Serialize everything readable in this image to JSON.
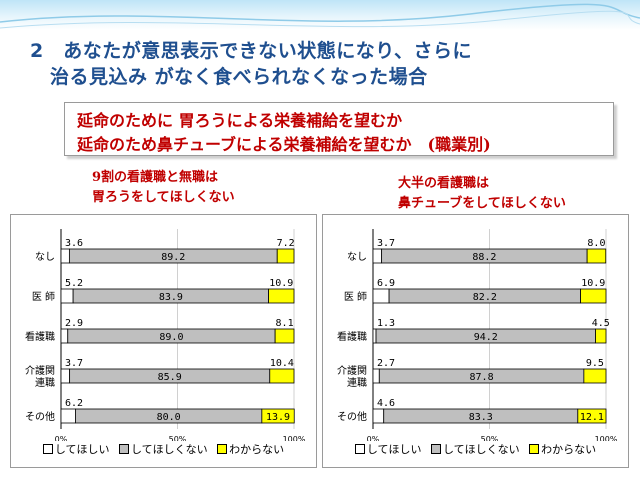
{
  "heading": {
    "line1": "2　あなたが意思表示できない状態になり、さらに",
    "line2": "治る見込み がなく食べられなくなった場合"
  },
  "redbox": {
    "line1": "延命のために 胃ろうによる栄養補給を望むか",
    "line2": "延命のため鼻チューブによる栄養補給を望むか　(職業別)"
  },
  "subtitles": {
    "left": [
      "9割の看護職と無職は",
      "胃ろうをしてほしくない"
    ],
    "right": [
      "大半の看護職は",
      "鼻チューブをしてほしくない"
    ]
  },
  "colors": {
    "want": "#ffffff",
    "dont": "#bfbfbf",
    "unknown": "#ffff00",
    "heading": "#1f4f8f",
    "accent": "#c00000"
  },
  "legend": [
    "してほしい",
    "してほしくない",
    "わからない"
  ],
  "chart_data": [
    {
      "type": "bar",
      "orientation": "horizontal",
      "stacked": true,
      "categories": [
        "なし",
        "医 師",
        "看護職",
        "介護関\n連職",
        "その他"
      ],
      "series": [
        {
          "name": "してほしい",
          "values": [
            3.6,
            5.2,
            2.9,
            3.7,
            6.2
          ],
          "labels": [
            "3.6",
            "5.2",
            "2.9",
            "3.7",
            "6.2"
          ]
        },
        {
          "name": "してほしくない",
          "values": [
            89.2,
            83.9,
            89.0,
            85.9,
            80.0
          ],
          "labels": [
            "89.2",
            "83.9",
            "89.0",
            "85.9",
            "80.0"
          ]
        },
        {
          "name": "わからない",
          "values": [
            7.2,
            10.9,
            8.1,
            10.4,
            13.9
          ],
          "labels": [
            "7.2",
            "10.9",
            "8.1",
            "10.4",
            "13.9"
          ]
        }
      ],
      "xticks": [
        "0%",
        "50%",
        "100%"
      ],
      "xlim": [
        0,
        100
      ],
      "legend_position": "bottom"
    },
    {
      "type": "bar",
      "orientation": "horizontal",
      "stacked": true,
      "categories": [
        "なし",
        "医 師",
        "看護職",
        "介護関\n連職",
        "その他"
      ],
      "series": [
        {
          "name": "してほしい",
          "values": [
            3.7,
            6.9,
            1.3,
            2.7,
            4.6
          ],
          "labels": [
            "3.7",
            "6.9",
            "1.3",
            "2.7",
            "4.6"
          ]
        },
        {
          "name": "してほしくない",
          "values": [
            88.2,
            82.2,
            94.2,
            87.8,
            83.3
          ],
          "labels": [
            "88.2",
            "82.2",
            "94.2",
            "87.8",
            "83.3"
          ]
        },
        {
          "name": "わからない",
          "values": [
            8.0,
            10.9,
            4.5,
            9.5,
            12.1
          ],
          "labels": [
            "8.0",
            "10.9",
            "4.5",
            "9.5",
            "12.1"
          ]
        }
      ],
      "xticks": [
        "0%",
        "50%",
        "100%"
      ],
      "xlim": [
        0,
        100
      ],
      "legend_position": "bottom"
    }
  ]
}
